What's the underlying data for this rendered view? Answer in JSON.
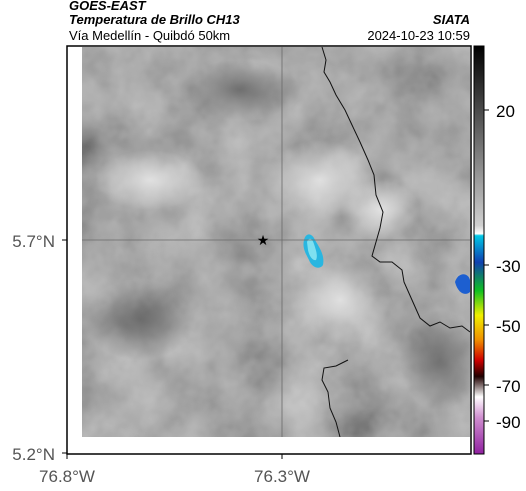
{
  "header": {
    "line1": "GOES-EAST",
    "line2": "Temperatura de Brillo CH13",
    "line3": "Vía Medellín - Quibdó 50km",
    "org": "SIATA",
    "timestamp": "2024-10-23 10:59"
  },
  "axes": {
    "lat_ticks": [
      "5.7°N",
      "5.2°N"
    ],
    "lon_ticks": [
      "76.8°W",
      "76.3°W"
    ]
  },
  "colorbar": {
    "labels": [
      "20",
      "-30",
      "-50",
      "-70",
      "-90"
    ]
  },
  "colors": {
    "cold_cloud": "#29b6e0",
    "background": "#8a8a8a"
  }
}
